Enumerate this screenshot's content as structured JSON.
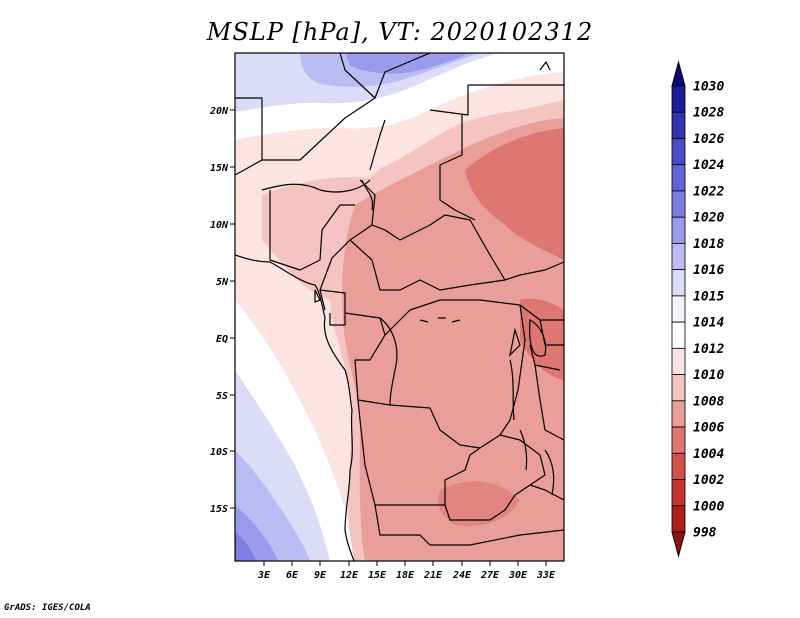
{
  "title": "MSLP [hPa], VT: 2020102312",
  "credit": "GrADS: IGES/COLA",
  "lat_ticks": [
    "20N",
    "15N",
    "10N",
    "5N",
    "EQ",
    "5S",
    "10S",
    "15S"
  ],
  "lon_ticks": [
    "3E",
    "6E",
    "9E",
    "12E",
    "15E",
    "18E",
    "21E",
    "24E",
    "27E",
    "30E",
    "33E"
  ],
  "colorbar": {
    "levels": [
      "1030",
      "1028",
      "1026",
      "1024",
      "1022",
      "1020",
      "1018",
      "1016",
      "1015",
      "1014",
      "1012",
      "1010",
      "1008",
      "1006",
      "1004",
      "1002",
      "1000",
      "998"
    ],
    "colors": [
      "#0d0877",
      "#1e1c9a",
      "#3431b2",
      "#4c4ac7",
      "#6563d8",
      "#7e7de3",
      "#9b9aec",
      "#bcbcf4",
      "#dcdcf9",
      "#f3f3fb",
      "#ffffff",
      "#fbe4e1",
      "#f5c4c0",
      "#ea9e99",
      "#de7772",
      "#d4504b",
      "#c63530",
      "#ad1f1a",
      "#8f1410"
    ]
  },
  "colors": {
    "map_frame": "#000000",
    "borders": "#000000"
  }
}
